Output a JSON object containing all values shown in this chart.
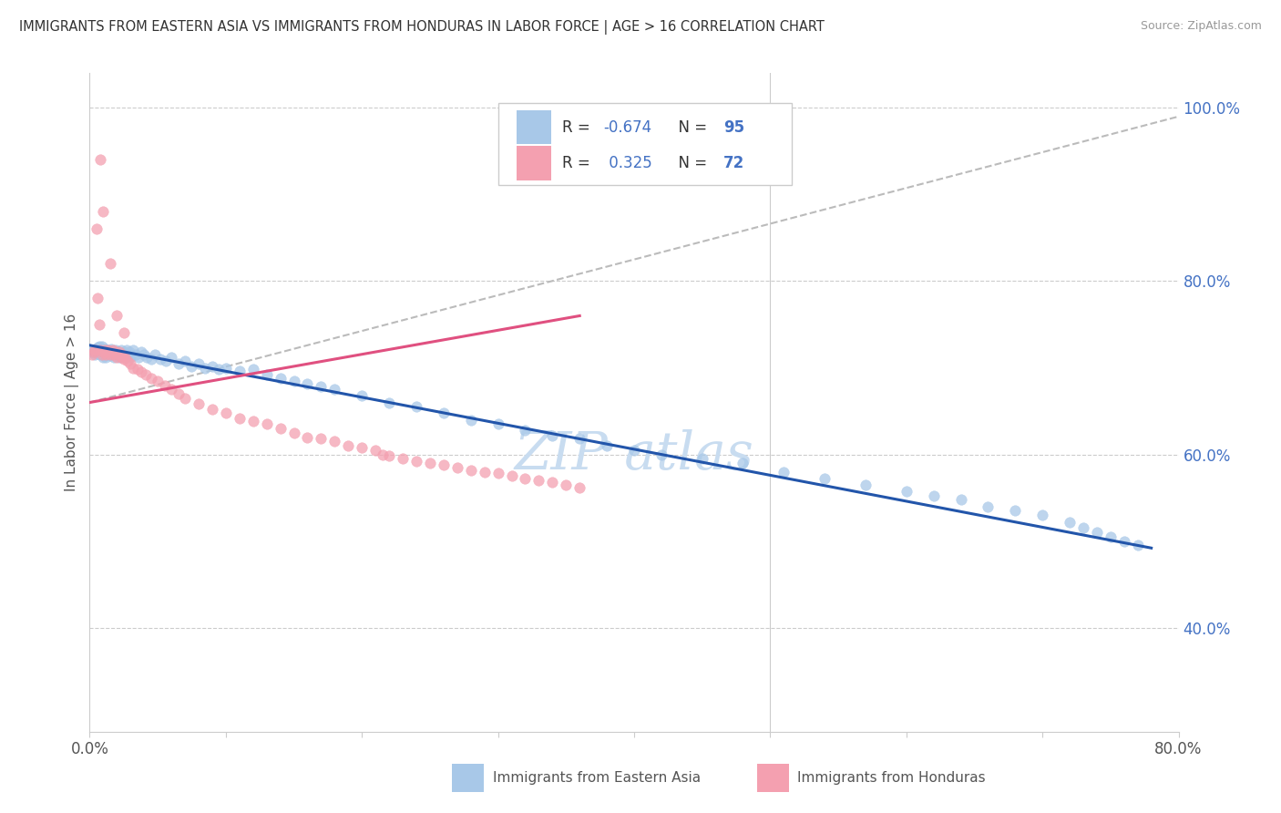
{
  "title": "IMMIGRANTS FROM EASTERN ASIA VS IMMIGRANTS FROM HONDURAS IN LABOR FORCE | AGE > 16 CORRELATION CHART",
  "source": "Source: ZipAtlas.com",
  "ylabel": "In Labor Force | Age > 16",
  "xlim": [
    0.0,
    0.8
  ],
  "ylim": [
    0.28,
    1.04
  ],
  "xticks": [
    0.0,
    0.1,
    0.2,
    0.3,
    0.4,
    0.5,
    0.6,
    0.7,
    0.8
  ],
  "yticks": [
    0.4,
    0.6,
    0.8,
    1.0
  ],
  "yticklabels": [
    "40.0%",
    "60.0%",
    "80.0%",
    "100.0%"
  ],
  "blue_color": "#A8C8E8",
  "pink_color": "#F4A0B0",
  "blue_line_color": "#2255AA",
  "pink_line_color": "#E05080",
  "dashed_line_color": "#BBBBBB",
  "scatter_alpha": 0.75,
  "scatter_size": 70,
  "legend_label_blue": "Immigrants from Eastern Asia",
  "legend_label_pink": "Immigrants from Honduras",
  "blue_scatter_x": [
    0.002,
    0.003,
    0.004,
    0.005,
    0.006,
    0.006,
    0.007,
    0.007,
    0.008,
    0.008,
    0.009,
    0.009,
    0.01,
    0.01,
    0.011,
    0.011,
    0.012,
    0.012,
    0.013,
    0.013,
    0.014,
    0.015,
    0.015,
    0.016,
    0.016,
    0.017,
    0.018,
    0.019,
    0.02,
    0.021,
    0.022,
    0.023,
    0.024,
    0.025,
    0.026,
    0.027,
    0.028,
    0.029,
    0.03,
    0.032,
    0.034,
    0.036,
    0.038,
    0.04,
    0.042,
    0.045,
    0.048,
    0.052,
    0.056,
    0.06,
    0.065,
    0.07,
    0.075,
    0.08,
    0.085,
    0.09,
    0.095,
    0.1,
    0.11,
    0.12,
    0.13,
    0.14,
    0.15,
    0.16,
    0.17,
    0.18,
    0.2,
    0.22,
    0.24,
    0.26,
    0.28,
    0.3,
    0.32,
    0.34,
    0.36,
    0.38,
    0.4,
    0.42,
    0.45,
    0.48,
    0.51,
    0.54,
    0.57,
    0.6,
    0.62,
    0.64,
    0.66,
    0.68,
    0.7,
    0.72,
    0.73,
    0.74,
    0.75,
    0.76,
    0.77
  ],
  "blue_scatter_y": [
    0.718,
    0.72,
    0.715,
    0.722,
    0.716,
    0.724,
    0.718,
    0.725,
    0.715,
    0.722,
    0.718,
    0.725,
    0.712,
    0.72,
    0.715,
    0.718,
    0.712,
    0.722,
    0.715,
    0.718,
    0.72,
    0.714,
    0.718,
    0.722,
    0.715,
    0.718,
    0.712,
    0.72,
    0.715,
    0.718,
    0.712,
    0.72,
    0.715,
    0.718,
    0.712,
    0.72,
    0.715,
    0.718,
    0.712,
    0.72,
    0.715,
    0.712,
    0.718,
    0.715,
    0.712,
    0.71,
    0.715,
    0.71,
    0.708,
    0.712,
    0.705,
    0.708,
    0.702,
    0.705,
    0.7,
    0.702,
    0.698,
    0.7,
    0.696,
    0.698,
    0.692,
    0.688,
    0.685,
    0.682,
    0.678,
    0.675,
    0.668,
    0.66,
    0.655,
    0.648,
    0.64,
    0.635,
    0.628,
    0.622,
    0.618,
    0.61,
    0.605,
    0.6,
    0.595,
    0.59,
    0.58,
    0.572,
    0.565,
    0.558,
    0.552,
    0.548,
    0.54,
    0.535,
    0.53,
    0.522,
    0.515,
    0.51,
    0.505,
    0.5,
    0.495
  ],
  "pink_scatter_x": [
    0.002,
    0.003,
    0.004,
    0.005,
    0.006,
    0.007,
    0.008,
    0.009,
    0.01,
    0.011,
    0.012,
    0.013,
    0.014,
    0.015,
    0.016,
    0.017,
    0.018,
    0.019,
    0.02,
    0.021,
    0.022,
    0.023,
    0.024,
    0.025,
    0.026,
    0.028,
    0.03,
    0.032,
    0.035,
    0.038,
    0.041,
    0.045,
    0.05,
    0.055,
    0.06,
    0.065,
    0.07,
    0.08,
    0.09,
    0.1,
    0.11,
    0.12,
    0.13,
    0.14,
    0.15,
    0.16,
    0.17,
    0.18,
    0.19,
    0.2,
    0.21,
    0.215,
    0.22,
    0.23,
    0.24,
    0.25,
    0.26,
    0.27,
    0.28,
    0.29,
    0.3,
    0.31,
    0.32,
    0.33,
    0.34,
    0.35,
    0.36,
    0.008,
    0.01,
    0.015,
    0.02,
    0.025
  ],
  "pink_scatter_y": [
    0.715,
    0.718,
    0.72,
    0.86,
    0.78,
    0.75,
    0.72,
    0.715,
    0.718,
    0.72,
    0.715,
    0.718,
    0.72,
    0.715,
    0.718,
    0.72,
    0.715,
    0.718,
    0.712,
    0.715,
    0.718,
    0.712,
    0.715,
    0.71,
    0.712,
    0.708,
    0.705,
    0.7,
    0.698,
    0.695,
    0.692,
    0.688,
    0.685,
    0.68,
    0.675,
    0.67,
    0.665,
    0.658,
    0.652,
    0.648,
    0.642,
    0.638,
    0.635,
    0.63,
    0.625,
    0.62,
    0.618,
    0.615,
    0.61,
    0.608,
    0.605,
    0.6,
    0.598,
    0.595,
    0.592,
    0.59,
    0.588,
    0.585,
    0.582,
    0.58,
    0.578,
    0.575,
    0.572,
    0.57,
    0.568,
    0.565,
    0.562,
    0.94,
    0.88,
    0.82,
    0.76,
    0.74
  ],
  "blue_trend_x": [
    0.0,
    0.78
  ],
  "blue_trend_y": [
    0.726,
    0.492
  ],
  "pink_trend_x": [
    0.0,
    0.36
  ],
  "pink_trend_y": [
    0.66,
    0.76
  ],
  "dashed_trend_x": [
    0.0,
    0.8
  ],
  "dashed_trend_y": [
    0.66,
    0.99
  ]
}
